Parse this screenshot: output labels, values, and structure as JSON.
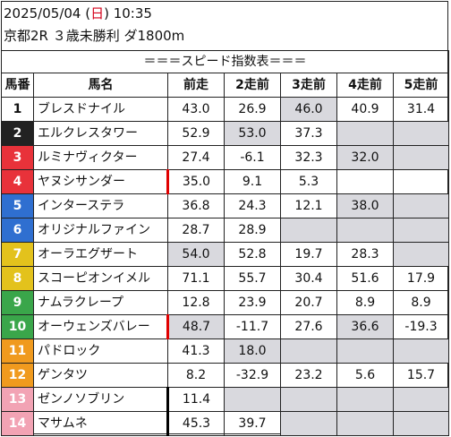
{
  "header": {
    "date_prefix": "2025/05/04 (",
    "weekday": "日",
    "date_suffix": ") 10:35",
    "race": "京都2R ３歳未勝利 ダ1800m"
  },
  "table": {
    "title": "＝＝＝スピード指数表＝＝＝",
    "columns": [
      "馬番",
      "馬名",
      "前走",
      "2走前",
      "3走前",
      "4走前",
      "5走前"
    ],
    "rows": [
      {
        "num": "1",
        "name": "ブレスドナイル",
        "cells": [
          "43.0",
          "26.9",
          "46.0",
          "40.9",
          "31.4"
        ],
        "shaded": [
          false,
          false,
          true,
          false,
          false
        ],
        "num_bg": "#ffffff",
        "num_fg": "#111111",
        "mark": ""
      },
      {
        "num": "2",
        "name": "エルクレスタワー",
        "cells": [
          "52.9",
          "53.0",
          "37.3",
          "",
          ""
        ],
        "shaded": [
          false,
          true,
          false,
          true,
          true
        ],
        "num_bg": "#222222",
        "num_fg": "#ffffff",
        "mark": ""
      },
      {
        "num": "3",
        "name": "ルミナヴィクター",
        "cells": [
          "27.4",
          "-6.1",
          "32.3",
          "32.0",
          ""
        ],
        "shaded": [
          false,
          false,
          false,
          true,
          true
        ],
        "num_bg": "#e8323a",
        "num_fg": "#ffffff",
        "mark": ""
      },
      {
        "num": "4",
        "name": "ヤヌシサンダー",
        "cells": [
          "35.0",
          "9.1",
          "5.3",
          "",
          ""
        ],
        "shaded": [
          false,
          false,
          false,
          false,
          false
        ],
        "num_bg": "#e8323a",
        "num_fg": "#ffffff",
        "mark": "red"
      },
      {
        "num": "5",
        "name": "インターステラ",
        "cells": [
          "36.8",
          "24.3",
          "12.1",
          "38.0",
          ""
        ],
        "shaded": [
          false,
          false,
          false,
          true,
          true
        ],
        "num_bg": "#2f6fd0",
        "num_fg": "#ffffff",
        "mark": ""
      },
      {
        "num": "6",
        "name": "オリジナルファイン",
        "cells": [
          "28.7",
          "28.9",
          "",
          "",
          ""
        ],
        "shaded": [
          false,
          false,
          true,
          true,
          true
        ],
        "num_bg": "#2f6fd0",
        "num_fg": "#ffffff",
        "mark": ""
      },
      {
        "num": "7",
        "name": "オーラエグザート",
        "cells": [
          "54.0",
          "52.8",
          "19.7",
          "28.3",
          ""
        ],
        "shaded": [
          true,
          false,
          false,
          false,
          true
        ],
        "num_bg": "#e3c21c",
        "num_fg": "#ffffff",
        "mark": ""
      },
      {
        "num": "8",
        "name": "スコーピオンイメル",
        "cells": [
          "71.1",
          "55.7",
          "30.4",
          "51.6",
          "17.9"
        ],
        "shaded": [
          false,
          false,
          false,
          false,
          false
        ],
        "num_bg": "#e3c21c",
        "num_fg": "#ffffff",
        "mark": ""
      },
      {
        "num": "9",
        "name": "ナムラクレープ",
        "cells": [
          "12.8",
          "23.9",
          "20.7",
          "8.9",
          "8.9"
        ],
        "shaded": [
          false,
          false,
          false,
          false,
          false
        ],
        "num_bg": "#3aa64a",
        "num_fg": "#ffffff",
        "mark": ""
      },
      {
        "num": "10",
        "name": "オーウェンズバレー",
        "cells": [
          "48.7",
          "-11.7",
          "27.6",
          "36.6",
          "-19.3"
        ],
        "shaded": [
          true,
          false,
          false,
          true,
          false
        ],
        "num_bg": "#3aa64a",
        "num_fg": "#ffffff",
        "mark": "red"
      },
      {
        "num": "11",
        "name": "パドロック",
        "cells": [
          "41.3",
          "18.0",
          "",
          "",
          ""
        ],
        "shaded": [
          false,
          true,
          true,
          true,
          true
        ],
        "num_bg": "#f09a1e",
        "num_fg": "#ffffff",
        "mark": ""
      },
      {
        "num": "12",
        "name": "ゲンタツ",
        "cells": [
          "8.2",
          "-32.9",
          "23.2",
          "5.6",
          "15.7"
        ],
        "shaded": [
          false,
          false,
          false,
          false,
          false
        ],
        "num_bg": "#f09a1e",
        "num_fg": "#ffffff",
        "mark": ""
      },
      {
        "num": "13",
        "name": "ゼンノソブリン",
        "cells": [
          "11.4",
          "",
          "",
          "",
          ""
        ],
        "shaded": [
          false,
          true,
          true,
          true,
          true
        ],
        "num_bg": "#f2a3b4",
        "num_fg": "#ffffff",
        "mark": "black"
      },
      {
        "num": "14",
        "name": "マサムネ",
        "cells": [
          "45.3",
          "39.7",
          "",
          "",
          ""
        ],
        "shaded": [
          false,
          false,
          true,
          true,
          true
        ],
        "num_bg": "#f2a3b4",
        "num_fg": "#ffffff",
        "mark": "black"
      }
    ]
  }
}
